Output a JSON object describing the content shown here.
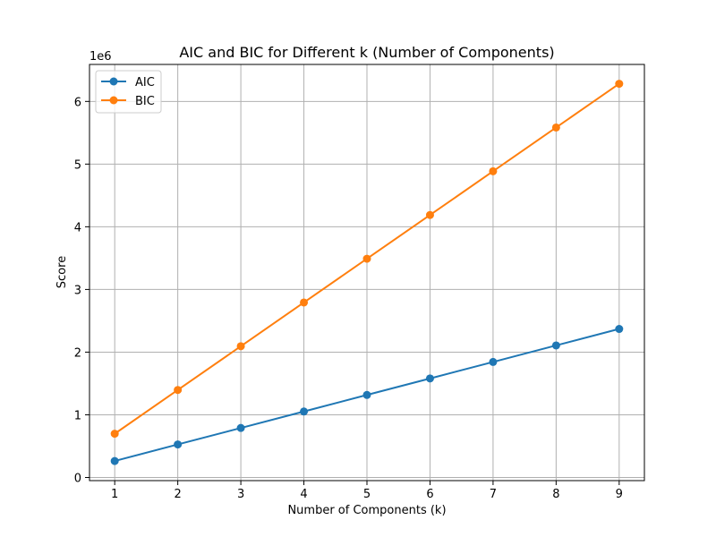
{
  "chart_data": {
    "type": "line",
    "title": "AIC and BIC for Different k (Number of Components)",
    "xlabel": "Number of Components (k)",
    "ylabel": "Score",
    "offset_label": "1e6",
    "x": [
      1,
      2,
      3,
      4,
      5,
      6,
      7,
      8,
      9
    ],
    "x_ticks": [
      "1",
      "2",
      "3",
      "4",
      "5",
      "6",
      "7",
      "8",
      "9"
    ],
    "y_tick_values": [
      0,
      1000000,
      2000000,
      3000000,
      4000000,
      5000000,
      6000000
    ],
    "y_ticks": [
      "0",
      "1",
      "2",
      "3",
      "4",
      "5",
      "6"
    ],
    "xlim": [
      0.6,
      9.4
    ],
    "ylim": [
      -50000,
      6590000
    ],
    "grid": true,
    "legend_position": "top-left",
    "series": [
      {
        "name": "AIC",
        "color": "#1f77b4",
        "marker": "circle",
        "values": [
          263000,
          527000,
          790000,
          1053000,
          1317000,
          1580000,
          1843000,
          2107000,
          2370000
        ]
      },
      {
        "name": "BIC",
        "color": "#ff7f0e",
        "marker": "circle",
        "values": [
          698000,
          1396000,
          2094000,
          2792000,
          3490000,
          4188000,
          4886000,
          5584000,
          6282000
        ]
      }
    ]
  }
}
